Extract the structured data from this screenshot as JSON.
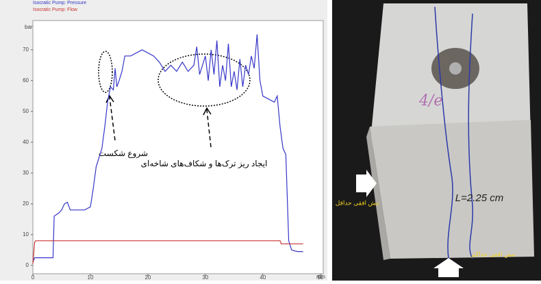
{
  "chart_data": {
    "type": "line",
    "legend": [
      "Isocratic Pump: Pressure",
      "Isocratic Pump: Flow"
    ],
    "ylabel": "bar",
    "xlabel": "min",
    "xlim": [
      0,
      50.5
    ],
    "ylim": [
      -2.7,
      79.5
    ],
    "xticks": [
      0,
      10,
      20,
      30,
      40,
      50
    ],
    "yticks": [
      0,
      10,
      20,
      30,
      40,
      50,
      60,
      70
    ],
    "series": [
      {
        "name": "Isocratic Pump: Pressure",
        "color": "#3535c8",
        "x": [
          0,
          0.3,
          3.5,
          3.7,
          4.5,
          5,
          5.5,
          6,
          6.5,
          9,
          10,
          10.5,
          11,
          12,
          12.5,
          13,
          13.5,
          14,
          14.3,
          14.6,
          15,
          15.5,
          16,
          17,
          18,
          19,
          20,
          21,
          22,
          23,
          23.5,
          24,
          25,
          26,
          27,
          28,
          28.5,
          29,
          30,
          30.5,
          31,
          31.5,
          32,
          32.5,
          33,
          33.5,
          34,
          34.5,
          35,
          35.5,
          36,
          36.5,
          37,
          37.5,
          38,
          38.5,
          39,
          39.5,
          40,
          41,
          42,
          42.5,
          43,
          43.5,
          44,
          44.5,
          45,
          46,
          47
        ],
        "values": [
          1,
          2.5,
          2.5,
          16,
          17,
          18,
          20,
          20.5,
          18,
          18,
          19,
          25,
          32,
          38,
          45,
          53,
          58,
          57,
          64,
          58,
          60,
          63,
          68,
          68,
          69,
          70,
          69,
          68,
          66,
          63,
          64,
          65,
          63,
          66,
          63,
          65,
          71,
          62,
          68,
          60,
          70,
          62,
          73,
          58,
          65,
          60,
          72,
          58,
          63,
          57,
          67,
          58,
          65,
          62,
          68,
          64,
          75,
          60,
          55,
          54,
          53,
          55,
          45,
          38,
          36,
          8,
          5,
          4.5,
          4.5
        ]
      },
      {
        "name": "Isocratic Pump: Flow",
        "color": "#c83232",
        "x": [
          0,
          0.3,
          0.5,
          43,
          43.2,
          47
        ],
        "values": [
          0.5,
          7.5,
          8,
          8,
          7,
          7
        ]
      }
    ],
    "annotations": [
      "شروع شکست",
      "ایجاد ریز ترک‌ها و شکاف‌های شاخه‌ای"
    ]
  },
  "photo": {
    "labels": [
      "تنش افقی حداقل",
      "تنش افقی حداکثر"
    ],
    "handwriting": [
      "4/e",
      "L=2.25 cm"
    ]
  }
}
